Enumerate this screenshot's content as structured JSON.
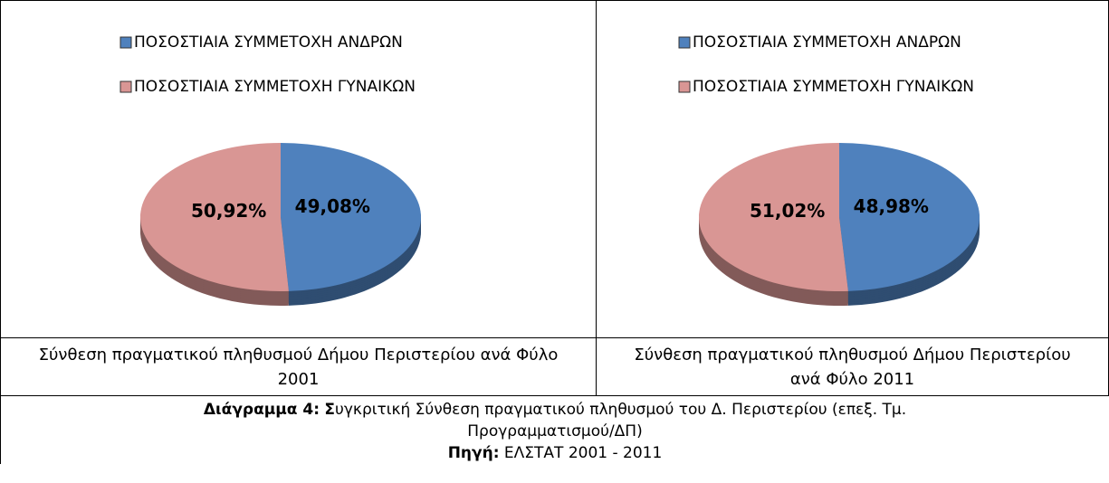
{
  "chart_data": [
    {
      "type": "pie",
      "categories": [
        "ΠΟΣΟΣΤΙΑΙΑ ΣΥΜΜΕΤΟΧΗ ΑΝΔΡΩΝ",
        "ΠΟΣΟΣΤΙΑΙΑ ΣΥΜΜΕΤΟΧΗ ΓΥΝΑΙΚΩΝ"
      ],
      "values": [
        49.08,
        50.92
      ],
      "value_labels": [
        "49,08%",
        "50,92%"
      ],
      "colors": [
        "#4f81bd",
        "#d99694"
      ],
      "caption": "Σύνθεση πραγματικού πληθυσμού Δήμου Περιστερίου ανά Φύλο 2001"
    },
    {
      "type": "pie",
      "categories": [
        "ΠΟΣΟΣΤΙΑΙΑ ΣΥΜΜΕΤΟΧΗ ΑΝΔΡΩΝ",
        "ΠΟΣΟΣΤΙΑΙΑ ΣΥΜΜΕΤΟΧΗ ΓΥΝΑΙΚΩΝ"
      ],
      "values": [
        48.98,
        51.02
      ],
      "value_labels": [
        "48,98%",
        "51,02%"
      ],
      "colors": [
        "#4f81bd",
        "#d99694"
      ],
      "caption": "Σύνθεση πραγματικού πληθυσμού Δήμου Περιστερίου ανά Φύλο 2011"
    }
  ],
  "figure_caption": {
    "label": "Διάγραμμα 4:",
    "initial": "Σ",
    "text": "υγκριτική Σύνθεση πραγματικού πληθυσμού του Δ. Περιστερίου (επεξ. Τμ. Προγραμματισμού/ΔΠ)"
  },
  "source": {
    "label": "Πηγή:",
    "text": "ΕΛΣΤΑΤ 2001 - 2011"
  }
}
